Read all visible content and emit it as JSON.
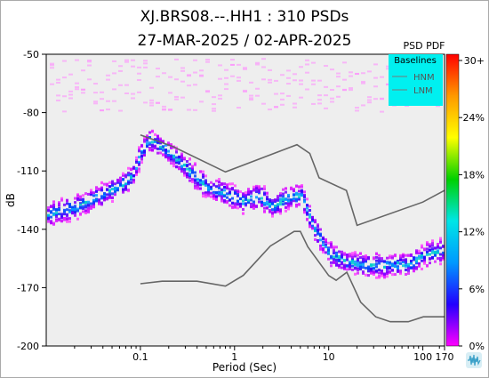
{
  "title": {
    "line1": "XJ.BRS08.--.HH1 : 310 PSDs",
    "line2": "27-MAR-2025 / 02-APR-2025"
  },
  "chart_data": {
    "type": "heatmap",
    "xlabel": "Period (Sec)",
    "ylabel": "dB",
    "x_scale": "log",
    "xlim": [
      0.01,
      170
    ],
    "ylim": [
      -200,
      -50
    ],
    "x_ticks": [
      {
        "value": 0.1,
        "label": "0.1"
      },
      {
        "value": 1,
        "label": "1"
      },
      {
        "value": 10,
        "label": "10"
      },
      {
        "value": 100,
        "label": "100"
      },
      {
        "value": 170,
        "label": "170"
      }
    ],
    "y_ticks": [
      -50,
      -80,
      -110,
      -140,
      -170,
      -200
    ],
    "colorbar": {
      "title": "PSD PDF",
      "labels": [
        "30+",
        "24%",
        "18%",
        "12%",
        "6%",
        "0%"
      ],
      "stops": [
        "#ff00ff",
        "#2200ff",
        "#0099ff",
        "#00e6e6",
        "#00d000",
        "#ffff00",
        "#ff9900",
        "#ff0000"
      ]
    },
    "legend": {
      "title": "Baselines",
      "entries": [
        "HNM",
        "LNM"
      ],
      "background": "#00f0f0",
      "placement": "top-right"
    },
    "baselines": [
      {
        "name": "HNM",
        "x": [
          0.1,
          0.22,
          0.8,
          3.8,
          4.6,
          6.3,
          7.9,
          15.4,
          20,
          100,
          170
        ],
        "y": [
          -91.5,
          -97.4,
          -110.5,
          -98,
          -96.5,
          -101,
          -113.5,
          -120,
          -138,
          -126,
          -120
        ]
      },
      {
        "name": "LNM",
        "x": [
          0.1,
          0.17,
          0.4,
          0.8,
          1.24,
          2.4,
          4.3,
          5,
          6,
          10,
          12,
          15.6,
          21.9,
          31.6,
          45,
          70,
          101,
          154,
          170
        ],
        "y": [
          -168,
          -166.7,
          -166.7,
          -169.2,
          -163.7,
          -148.6,
          -141.1,
          -141.1,
          -149,
          -163.8,
          -166.2,
          -162.1,
          -177.5,
          -185,
          -187.5,
          -187.5,
          -185,
          -185,
          -185
        ]
      }
    ],
    "density_ridges": [
      {
        "x": [
          0.01,
          0.02,
          0.04,
          0.06,
          0.08,
          0.1,
          0.12,
          0.18,
          0.3,
          0.5,
          0.8,
          1.2,
          1.8,
          2.5,
          3.5,
          5,
          7,
          10,
          15,
          25,
          40,
          70,
          110,
          170
        ],
        "y": [
          -132,
          -128,
          -121,
          -117,
          -112,
          -100,
          -93,
          -98,
          -108,
          -118,
          -121,
          -125,
          -122,
          -128,
          -123,
          -122,
          -140,
          -152,
          -156,
          -158,
          -158,
          -157,
          -152,
          -150
        ]
      }
    ]
  }
}
